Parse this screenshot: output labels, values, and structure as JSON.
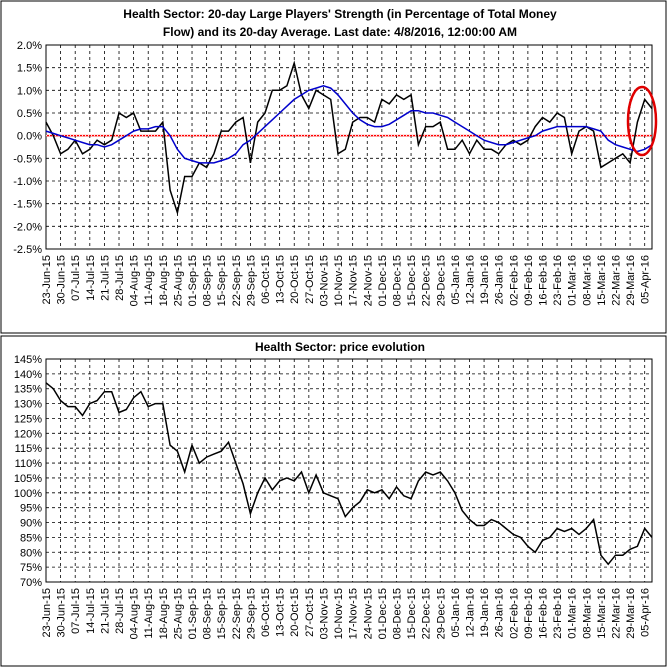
{
  "chart_data": [
    {
      "type": "line",
      "title": [
        "Health Sector: 20-day Large Players' Strength (in Percentage of Total Money",
        "Flow) and its 20-day Average. Last date: 4/8/2016, 12:00:00 AM"
      ],
      "categories": [
        "23-Jun-15",
        null,
        "30-Jun-15",
        null,
        "07-Jul-15",
        null,
        "14-Jul-15",
        null,
        "21-Jul-15",
        null,
        "28-Jul-15",
        null,
        "04-Aug-15",
        null,
        "11-Aug-15",
        null,
        "18-Aug-15",
        null,
        "25-Aug-15",
        null,
        "01-Sep-15",
        null,
        "08-Sep-15",
        null,
        "15-Sep-15",
        null,
        "22-Sep-15",
        null,
        "29-Sep-15",
        null,
        "06-Oct-15",
        null,
        "13-Oct-15",
        null,
        "20-Oct-15",
        null,
        "27-Oct-15",
        null,
        "03-Nov-15",
        null,
        "10-Nov-15",
        null,
        "17-Nov-15",
        null,
        "24-Nov-15",
        null,
        "01-Dec-15",
        null,
        "08-Dec-15",
        null,
        "15-Dec-15",
        null,
        "22-Dec-15",
        null,
        "29-Dec-15",
        null,
        "05-Jan-16",
        null,
        "12-Jan-16",
        null,
        "19-Jan-16",
        null,
        "26-Jan-16",
        null,
        "02-Feb-16",
        null,
        "09-Feb-16",
        null,
        "16-Feb-16",
        null,
        "23-Feb-16",
        null,
        "01-Mar-16",
        null,
        "08-Mar-16",
        null,
        "15-Mar-16",
        null,
        "22-Mar-16",
        null,
        "29-Mar-16",
        null,
        "05-Apr-16",
        null
      ],
      "series": [
        {
          "color": "#000000",
          "values": [
            0.3,
            0.0,
            -0.4,
            -0.3,
            -0.1,
            -0.4,
            -0.3,
            -0.1,
            -0.2,
            -0.1,
            0.5,
            0.4,
            0.5,
            0.1,
            0.1,
            0.1,
            0.3,
            -1.2,
            -1.7,
            -0.9,
            -0.9,
            -0.6,
            -0.7,
            -0.4,
            0.1,
            0.1,
            0.3,
            0.4,
            -0.6,
            0.3,
            0.5,
            1.0,
            1.0,
            1.1,
            1.6,
            0.9,
            0.6,
            1.0,
            0.9,
            0.8,
            -0.4,
            -0.3,
            0.3,
            0.4,
            0.4,
            0.3,
            0.8,
            0.7,
            0.9,
            0.8,
            0.9,
            -0.2,
            0.2,
            0.2,
            0.3,
            -0.3,
            -0.3,
            -0.1,
            -0.4,
            -0.1,
            -0.3,
            -0.3,
            -0.4,
            -0.2,
            -0.1,
            -0.2,
            -0.1,
            0.2,
            0.4,
            0.3,
            0.5,
            0.4,
            -0.4,
            0.1,
            0.2,
            0.1,
            -0.7,
            -0.6,
            -0.5,
            -0.4,
            -0.6,
            0.3,
            0.8,
            0.6
          ]
        },
        {
          "color": "#0000cc",
          "values": [
            0.1,
            0.05,
            0.0,
            -0.05,
            -0.1,
            -0.15,
            -0.2,
            -0.2,
            -0.25,
            -0.2,
            -0.1,
            0.0,
            0.1,
            0.15,
            0.15,
            0.2,
            0.2,
            0.0,
            -0.3,
            -0.5,
            -0.55,
            -0.6,
            -0.6,
            -0.6,
            -0.55,
            -0.5,
            -0.4,
            -0.2,
            -0.1,
            0.05,
            0.2,
            0.35,
            0.5,
            0.65,
            0.8,
            0.9,
            1.0,
            1.05,
            1.1,
            1.05,
            0.9,
            0.7,
            0.5,
            0.35,
            0.25,
            0.2,
            0.2,
            0.25,
            0.35,
            0.45,
            0.55,
            0.55,
            0.5,
            0.5,
            0.45,
            0.4,
            0.3,
            0.2,
            0.1,
            0.0,
            -0.1,
            -0.15,
            -0.2,
            -0.2,
            -0.15,
            -0.1,
            -0.05,
            0.0,
            0.1,
            0.15,
            0.2,
            0.2,
            0.2,
            0.2,
            0.2,
            0.15,
            0.1,
            -0.1,
            -0.2,
            -0.25,
            -0.3,
            -0.35,
            -0.3,
            -0.2
          ]
        }
      ],
      "reference_line": {
        "value": 0,
        "color": "#ff0000"
      },
      "ylim": [
        -2.5,
        2.0
      ],
      "yticks": [
        {
          "value": -2.5,
          "label": "-2.5%"
        },
        {
          "value": -2.0,
          "label": "-2.0%"
        },
        {
          "value": -1.5,
          "label": "-1.5%"
        },
        {
          "value": -1.0,
          "label": "-1.0%"
        },
        {
          "value": -0.5,
          "label": "-0.5%"
        },
        {
          "value": 0,
          "label": "0.0%"
        },
        {
          "value": 0.5,
          "label": "0.5%"
        },
        {
          "value": 1.0,
          "label": "1.0%"
        },
        {
          "value": 1.5,
          "label": "1.5%"
        },
        {
          "value": 2.0,
          "label": "2.0%"
        }
      ],
      "grid": true
    },
    {
      "type": "line",
      "title": [
        "Health Sector: price evolution"
      ],
      "categories": [
        "23-Jun-15",
        null,
        "30-Jun-15",
        null,
        "07-Jul-15",
        null,
        "14-Jul-15",
        null,
        "21-Jul-15",
        null,
        "28-Jul-15",
        null,
        "04-Aug-15",
        null,
        "11-Aug-15",
        null,
        "18-Aug-15",
        null,
        "25-Aug-15",
        null,
        "01-Sep-15",
        null,
        "08-Sep-15",
        null,
        "15-Sep-15",
        null,
        "22-Sep-15",
        null,
        "29-Sep-15",
        null,
        "06-Oct-15",
        null,
        "13-Oct-15",
        null,
        "20-Oct-15",
        null,
        "27-Oct-15",
        null,
        "03-Nov-15",
        null,
        "10-Nov-15",
        null,
        "17-Nov-15",
        null,
        "24-Nov-15",
        null,
        "01-Dec-15",
        null,
        "08-Dec-15",
        null,
        "15-Dec-15",
        null,
        "22-Dec-15",
        null,
        "29-Dec-15",
        null,
        "05-Jan-16",
        null,
        "12-Jan-16",
        null,
        "19-Jan-16",
        null,
        "26-Jan-16",
        null,
        "02-Feb-16",
        null,
        "09-Feb-16",
        null,
        "16-Feb-16",
        null,
        "23-Feb-16",
        null,
        "01-Mar-16",
        null,
        "08-Mar-16",
        null,
        "15-Mar-16",
        null,
        "22-Mar-16",
        null,
        "29-Mar-16",
        null,
        "05-Apr-16",
        null
      ],
      "series": [
        {
          "color": "#000000",
          "values": [
            137,
            135,
            131,
            129,
            129,
            126,
            130,
            131,
            134,
            134,
            127,
            128,
            132,
            134,
            129,
            130,
            130,
            116,
            114,
            107,
            116,
            110,
            112,
            113,
            114,
            117,
            110,
            103,
            93,
            100,
            105,
            101,
            104,
            105,
            104,
            107,
            100,
            106,
            100,
            99,
            98,
            92,
            95,
            97,
            101,
            100,
            101,
            98,
            102,
            99,
            98,
            104,
            107,
            106,
            107,
            104,
            100,
            94,
            91,
            89,
            89,
            91,
            90,
            88,
            86,
            85,
            82,
            80,
            84,
            85,
            88,
            87,
            88,
            86,
            88,
            91,
            79,
            76,
            79,
            79,
            81,
            82,
            88,
            85
          ]
        }
      ],
      "ylim": [
        70,
        145
      ],
      "yticks": [
        {
          "value": 70,
          "label": "70%"
        },
        {
          "value": 75,
          "label": "75%"
        },
        {
          "value": 80,
          "label": "80%"
        },
        {
          "value": 85,
          "label": "85%"
        },
        {
          "value": 90,
          "label": "90%"
        },
        {
          "value": 95,
          "label": "95%"
        },
        {
          "value": 100,
          "label": "100%"
        },
        {
          "value": 105,
          "label": "105%"
        },
        {
          "value": 110,
          "label": "110%"
        },
        {
          "value": 115,
          "label": "115%"
        },
        {
          "value": 120,
          "label": "120%"
        },
        {
          "value": 125,
          "label": "125%"
        },
        {
          "value": 130,
          "label": "130%"
        },
        {
          "value": 135,
          "label": "135%"
        },
        {
          "value": 140,
          "label": "140%"
        },
        {
          "value": 145,
          "label": "145%"
        }
      ],
      "grid": true
    }
  ]
}
